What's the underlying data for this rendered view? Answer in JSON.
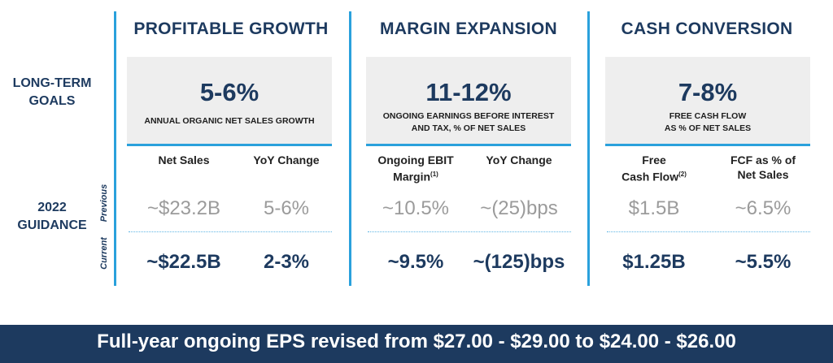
{
  "row_labels": {
    "goals_line1": "LONG-TERM",
    "goals_line2": "GOALS",
    "guidance_line1": "2022",
    "guidance_line2": "GUIDANCE",
    "previous": "Previous",
    "current": "Current"
  },
  "pillars": [
    {
      "title": "PROFITABLE GROWTH",
      "goal_value": "5-6%",
      "goal_desc_line1": "ANNUAL ORGANIC NET SALES GROWTH",
      "goal_desc_line2": "",
      "columns": [
        {
          "head_line1": "Net Sales",
          "head_line2": "",
          "previous": "~$23.2B",
          "current": "~$22.5B"
        },
        {
          "head_line1": "YoY Change",
          "head_line2": "",
          "previous": "5-6%",
          "current": "2-3%"
        }
      ]
    },
    {
      "title": "MARGIN EXPANSION",
      "goal_value": "11-12%",
      "goal_desc_line1": "ONGOING EARNINGS BEFORE INTEREST",
      "goal_desc_line2": "AND TAX, % OF NET SALES",
      "columns": [
        {
          "head_line1": "Ongoing EBIT",
          "head_line2": "Margin",
          "head_sup": "(1)",
          "previous": "~10.5%",
          "current": "~9.5%"
        },
        {
          "head_line1": "YoY Change",
          "head_line2": "",
          "previous": "~(25)bps",
          "current": "~(125)bps"
        }
      ]
    },
    {
      "title": "CASH CONVERSION",
      "goal_value": "7-8%",
      "goal_desc_line1": "FREE CASH FLOW",
      "goal_desc_line2": "AS % OF NET SALES",
      "columns": [
        {
          "head_line1": "Free",
          "head_line2": "Cash Flow",
          "head_sup": "(2)",
          "previous": "$1.5B",
          "current": "$1.25B"
        },
        {
          "head_line1": "FCF as % of",
          "head_line2": "Net Sales",
          "previous": "~6.5%",
          "current": "~5.5%"
        }
      ]
    }
  ],
  "banner": "Full-year ongoing EPS revised from $27.00 - $29.00 to $24.00 - $26.00",
  "colors": {
    "navy": "#1d3a5f",
    "accent": "#2aa1dc",
    "muted": "#9b9b9b",
    "box": "#eeeeee"
  }
}
